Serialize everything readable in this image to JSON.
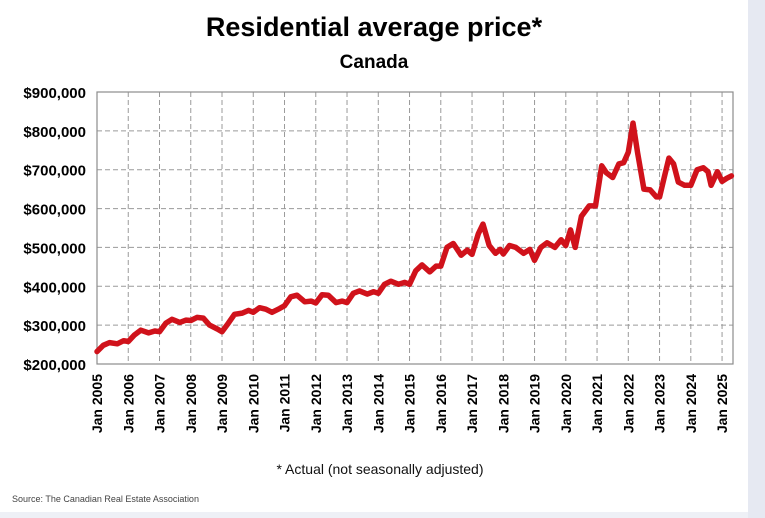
{
  "chart_data": {
    "type": "line",
    "title": "Residential average price*",
    "subtitle": "Canada",
    "footnote": "* Actual (not seasonally adjusted)",
    "source": "Source: The Canadian Real Estate Association",
    "ylim": [
      200000,
      900000
    ],
    "xlim": [
      2005.0,
      2025.35
    ],
    "grid": true,
    "y_ticks": [
      {
        "value": 200000,
        "label": "$200,000"
      },
      {
        "value": 300000,
        "label": "$300,000"
      },
      {
        "value": 400000,
        "label": "$400,000"
      },
      {
        "value": 500000,
        "label": "$500,000"
      },
      {
        "value": 600000,
        "label": "$600,000"
      },
      {
        "value": 700000,
        "label": "$700,000"
      },
      {
        "value": 800000,
        "label": "$800,000"
      },
      {
        "value": 900000,
        "label": "$900,000"
      }
    ],
    "x_ticks": [
      {
        "value": 2005,
        "label": "Jan 2005"
      },
      {
        "value": 2006,
        "label": "Jan 2006"
      },
      {
        "value": 2007,
        "label": "Jan 2007"
      },
      {
        "value": 2008,
        "label": "Jan 2008"
      },
      {
        "value": 2009,
        "label": "Jan 2009"
      },
      {
        "value": 2010,
        "label": "Jan 2010"
      },
      {
        "value": 2011,
        "label": "Jan 2011"
      },
      {
        "value": 2012,
        "label": "Jan 2012"
      },
      {
        "value": 2013,
        "label": "Jan 2013"
      },
      {
        "value": 2014,
        "label": "Jan 2014"
      },
      {
        "value": 2015,
        "label": "Jan 2015"
      },
      {
        "value": 2016,
        "label": "Jan 2016"
      },
      {
        "value": 2017,
        "label": "Jan 2017"
      },
      {
        "value": 2018,
        "label": "Jan 2018"
      },
      {
        "value": 2019,
        "label": "Jan 2019"
      },
      {
        "value": 2020,
        "label": "Jan 2020"
      },
      {
        "value": 2021,
        "label": "Jan 2021"
      },
      {
        "value": 2022,
        "label": "Jan 2022"
      },
      {
        "value": 2023,
        "label": "Jan 2023"
      },
      {
        "value": 2024,
        "label": "Jan 2024"
      },
      {
        "value": 2025,
        "label": "Jan 2025"
      }
    ],
    "series": [
      {
        "color": "#d0121b",
        "points": [
          [
            2005.0,
            232000
          ],
          [
            2005.2,
            248000
          ],
          [
            2005.4,
            255000
          ],
          [
            2005.65,
            252000
          ],
          [
            2005.85,
            260000
          ],
          [
            2006.0,
            258000
          ],
          [
            2006.2,
            275000
          ],
          [
            2006.4,
            287000
          ],
          [
            2006.65,
            280000
          ],
          [
            2006.85,
            285000
          ],
          [
            2007.0,
            283000
          ],
          [
            2007.2,
            305000
          ],
          [
            2007.4,
            315000
          ],
          [
            2007.65,
            307000
          ],
          [
            2007.85,
            313000
          ],
          [
            2008.0,
            312000
          ],
          [
            2008.2,
            320000
          ],
          [
            2008.4,
            318000
          ],
          [
            2008.6,
            300000
          ],
          [
            2008.85,
            290000
          ],
          [
            2009.0,
            283000
          ],
          [
            2009.2,
            305000
          ],
          [
            2009.4,
            328000
          ],
          [
            2009.65,
            331000
          ],
          [
            2009.85,
            338000
          ],
          [
            2010.0,
            333000
          ],
          [
            2010.2,
            345000
          ],
          [
            2010.4,
            341000
          ],
          [
            2010.6,
            333000
          ],
          [
            2010.85,
            343000
          ],
          [
            2011.0,
            350000
          ],
          [
            2011.2,
            373000
          ],
          [
            2011.4,
            377000
          ],
          [
            2011.65,
            360000
          ],
          [
            2011.85,
            362000
          ],
          [
            2012.0,
            357000
          ],
          [
            2012.2,
            378000
          ],
          [
            2012.4,
            377000
          ],
          [
            2012.65,
            358000
          ],
          [
            2012.85,
            362000
          ],
          [
            2013.0,
            358000
          ],
          [
            2013.2,
            382000
          ],
          [
            2013.4,
            388000
          ],
          [
            2013.65,
            380000
          ],
          [
            2013.85,
            386000
          ],
          [
            2014.0,
            382000
          ],
          [
            2014.2,
            405000
          ],
          [
            2014.4,
            413000
          ],
          [
            2014.65,
            405000
          ],
          [
            2014.85,
            410000
          ],
          [
            2015.0,
            405000
          ],
          [
            2015.2,
            440000
          ],
          [
            2015.4,
            455000
          ],
          [
            2015.65,
            437000
          ],
          [
            2015.85,
            452000
          ],
          [
            2016.0,
            452000
          ],
          [
            2016.2,
            500000
          ],
          [
            2016.4,
            510000
          ],
          [
            2016.65,
            480000
          ],
          [
            2016.85,
            493000
          ],
          [
            2017.0,
            482000
          ],
          [
            2017.2,
            535000
          ],
          [
            2017.35,
            560000
          ],
          [
            2017.55,
            505000
          ],
          [
            2017.75,
            485000
          ],
          [
            2017.9,
            495000
          ],
          [
            2018.0,
            483000
          ],
          [
            2018.2,
            505000
          ],
          [
            2018.4,
            500000
          ],
          [
            2018.65,
            485000
          ],
          [
            2018.85,
            495000
          ],
          [
            2019.0,
            467000
          ],
          [
            2019.2,
            500000
          ],
          [
            2019.4,
            512000
          ],
          [
            2019.65,
            500000
          ],
          [
            2019.85,
            520000
          ],
          [
            2020.0,
            505000
          ],
          [
            2020.15,
            545000
          ],
          [
            2020.3,
            500000
          ],
          [
            2020.5,
            580000
          ],
          [
            2020.75,
            607000
          ],
          [
            2020.95,
            607000
          ],
          [
            2021.15,
            710000
          ],
          [
            2021.3,
            692000
          ],
          [
            2021.5,
            680000
          ],
          [
            2021.7,
            715000
          ],
          [
            2021.85,
            718000
          ],
          [
            2022.0,
            745000
          ],
          [
            2022.15,
            820000
          ],
          [
            2022.3,
            742000
          ],
          [
            2022.5,
            650000
          ],
          [
            2022.7,
            648000
          ],
          [
            2022.9,
            630000
          ],
          [
            2023.0,
            630000
          ],
          [
            2023.15,
            680000
          ],
          [
            2023.3,
            730000
          ],
          [
            2023.45,
            715000
          ],
          [
            2023.6,
            668000
          ],
          [
            2023.8,
            660000
          ],
          [
            2024.0,
            660000
          ],
          [
            2024.2,
            700000
          ],
          [
            2024.4,
            705000
          ],
          [
            2024.55,
            695000
          ],
          [
            2024.65,
            660000
          ],
          [
            2024.85,
            695000
          ],
          [
            2025.0,
            670000
          ],
          [
            2025.15,
            678000
          ],
          [
            2025.3,
            684000
          ]
        ]
      }
    ]
  }
}
